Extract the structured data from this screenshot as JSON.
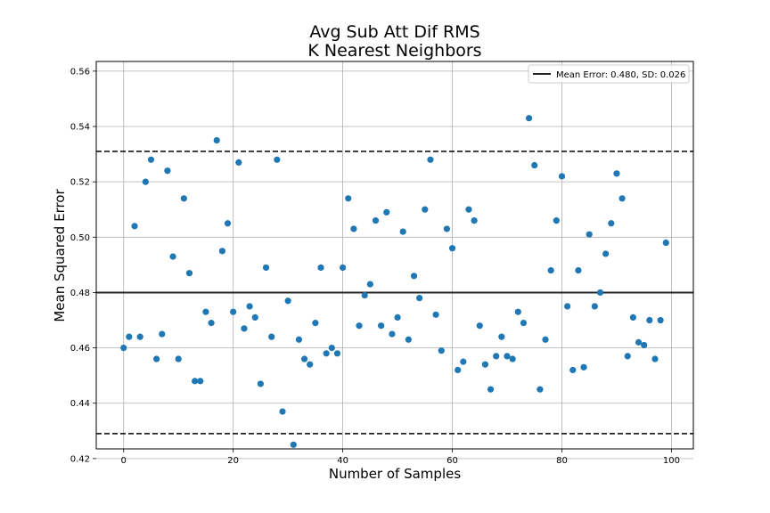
{
  "chart_data": {
    "type": "scatter",
    "title": "Avg Sub Att Dif RMS",
    "subtitle": "K Nearest Neighbors",
    "xlabel": "Number of Samples",
    "ylabel": "Mean Squared Error",
    "xlim": [
      -5,
      104
    ],
    "ylim": [
      0.4235,
      0.5635
    ],
    "xticks": [
      0,
      20,
      40,
      60,
      80,
      100
    ],
    "yticks": [
      0.42,
      0.44,
      0.46,
      0.48,
      0.5,
      0.52,
      0.54,
      0.56
    ],
    "grid": true,
    "legend_position": "top-right",
    "legend_label": "Mean Error: 0.480, SD: 0.026",
    "mean": 0.48,
    "upper_bound": 0.531,
    "lower_bound": 0.429,
    "point_color": "#1f77b4",
    "mean_line_color": "#262626",
    "bound_line_color": "#000000",
    "x": [
      0,
      1,
      2,
      3,
      4,
      5,
      6,
      7,
      8,
      9,
      10,
      11,
      12,
      13,
      14,
      15,
      16,
      17,
      18,
      19,
      20,
      21,
      22,
      23,
      24,
      25,
      26,
      27,
      28,
      29,
      30,
      31,
      32,
      33,
      34,
      35,
      36,
      37,
      38,
      39,
      40,
      41,
      42,
      43,
      44,
      45,
      46,
      47,
      48,
      49,
      50,
      51,
      52,
      53,
      54,
      55,
      56,
      57,
      58,
      59,
      60,
      61,
      62,
      63,
      64,
      65,
      66,
      67,
      68,
      69,
      70,
      71,
      72,
      73,
      74,
      75,
      76,
      77,
      78,
      79,
      80,
      81,
      82,
      83,
      84,
      85,
      86,
      87,
      88,
      89,
      90,
      91,
      92,
      93,
      94,
      95,
      96,
      97,
      98,
      99
    ],
    "y": [
      0.46,
      0.464,
      0.504,
      0.464,
      0.52,
      0.528,
      0.456,
      0.465,
      0.524,
      0.493,
      0.456,
      0.514,
      0.487,
      0.448,
      0.448,
      0.473,
      0.469,
      0.535,
      0.495,
      0.505,
      0.473,
      0.527,
      0.467,
      0.475,
      0.471,
      0.447,
      0.489,
      0.464,
      0.528,
      0.437,
      0.477,
      0.425,
      0.463,
      0.456,
      0.454,
      0.469,
      0.489,
      0.458,
      0.46,
      0.458,
      0.489,
      0.514,
      0.503,
      0.468,
      0.479,
      0.483,
      0.506,
      0.468,
      0.509,
      0.465,
      0.471,
      0.502,
      0.463,
      0.486,
      0.478,
      0.51,
      0.528,
      0.472,
      0.459,
      0.503,
      0.496,
      0.452,
      0.455,
      0.51,
      0.506,
      0.468,
      0.454,
      0.445,
      0.457,
      0.464,
      0.457,
      0.456,
      0.473,
      0.469,
      0.543,
      0.526,
      0.445,
      0.463,
      0.488,
      0.506,
      0.522,
      0.475,
      0.452,
      0.488,
      0.453,
      0.501,
      0.475,
      0.48,
      0.494,
      0.505,
      0.523,
      0.514,
      0.457,
      0.471,
      0.462,
      0.461,
      0.47,
      0.456,
      0.47,
      0.498
    ]
  }
}
